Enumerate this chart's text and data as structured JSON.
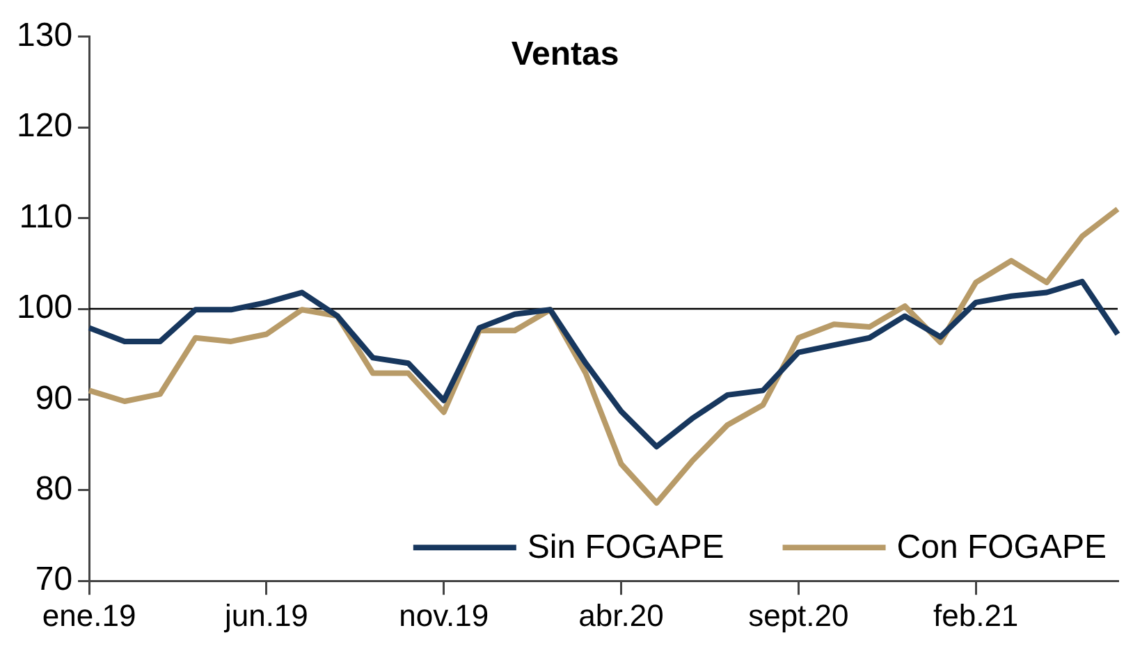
{
  "chart_data": {
    "type": "line",
    "title": "Ventas",
    "categories": [
      "ene.19",
      null,
      null,
      null,
      null,
      "jun.19",
      null,
      null,
      null,
      null,
      "nov.19",
      null,
      null,
      null,
      null,
      "abr.20",
      null,
      null,
      null,
      null,
      "sept.20",
      null,
      null,
      null,
      null,
      "feb.21",
      null,
      null,
      null,
      null
    ],
    "series": [
      {
        "name": "Sin FOGAPE",
        "color": "#17375e",
        "values": [
          97.9,
          96.4,
          96.4,
          99.9,
          99.9,
          100.7,
          101.8,
          99.2,
          94.6,
          94.0,
          89.9,
          97.9,
          99.4,
          99.9,
          94.0,
          88.7,
          84.8,
          87.9,
          90.5,
          91.0,
          95.2,
          96.0,
          96.8,
          99.2,
          96.9,
          100.7,
          101.4,
          101.8,
          103.0,
          97.2
        ]
      },
      {
        "name": "Con FOGAPE",
        "color": "#b89b68",
        "values": [
          91.0,
          89.8,
          90.6,
          96.8,
          96.4,
          97.2,
          99.9,
          99.2,
          92.9,
          92.9,
          88.6,
          97.6,
          97.6,
          99.9,
          92.9,
          82.9,
          78.6,
          83.2,
          87.2,
          89.4,
          96.8,
          98.3,
          98.0,
          100.3,
          96.3,
          102.9,
          105.3,
          102.9,
          108.0,
          111.0
        ]
      }
    ],
    "ylim": [
      70,
      130
    ],
    "yticks": [
      70,
      80,
      90,
      100,
      110,
      120,
      130
    ],
    "ref_lines": [
      {
        "axis": "y",
        "value": 100,
        "color": "#000000"
      }
    ],
    "grid": false,
    "legend": "bottom right",
    "marker": "none",
    "line_style": "solid"
  }
}
